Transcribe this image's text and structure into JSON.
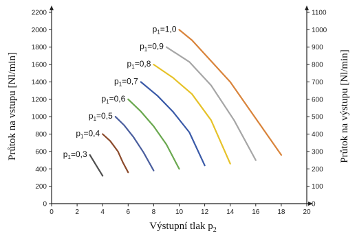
{
  "chart_data": {
    "type": "line",
    "xlabel": "Výstupní tlak p",
    "xlabel_subscript": "2",
    "ylabel_left": "Průtok na vstupu [Nl/min]",
    "ylabel_right": "Průtok na výstupu [Nl/min]",
    "xlim": [
      0,
      20
    ],
    "ylim_left": [
      0,
      2200
    ],
    "ylim_right": [
      0,
      1100
    ],
    "x_ticks": [
      0,
      2,
      4,
      6,
      8,
      10,
      12,
      14,
      16,
      18,
      20
    ],
    "y_left_ticks": [
      0,
      200,
      400,
      600,
      800,
      1000,
      1200,
      1400,
      1600,
      1800,
      2000,
      2200
    ],
    "y_right_ticks": [
      0,
      100,
      200,
      300,
      400,
      500,
      600,
      700,
      800,
      900,
      1000,
      1100
    ],
    "grid": false,
    "series": [
      {
        "name": "p1=0,3",
        "label_prefix": "p",
        "label_sub": "1",
        "label_suffix": "=0,3",
        "color": "#505050",
        "x": [
          3.0,
          3.5,
          4.0
        ],
        "y": [
          560,
          440,
          320
        ]
      },
      {
        "name": "p1=0,4",
        "label_prefix": "p",
        "label_sub": "1",
        "label_suffix": "=0,4",
        "color": "#8b4a2b",
        "x": [
          4.0,
          4.6,
          5.2,
          5.6,
          6.0
        ],
        "y": [
          800,
          720,
          600,
          470,
          360
        ]
      },
      {
        "name": "p1=0,5",
        "label_prefix": "p",
        "label_sub": "1",
        "label_suffix": "=0,5",
        "color": "#4a5e9e",
        "x": [
          5.0,
          5.7,
          6.4,
          7.2,
          8.0
        ],
        "y": [
          1000,
          900,
          770,
          590,
          380
        ]
      },
      {
        "name": "p1=0,6",
        "label_prefix": "p",
        "label_sub": "1",
        "label_suffix": "=0,6",
        "color": "#6aa84f",
        "x": [
          6.0,
          7.0,
          8.0,
          9.0,
          10.0
        ],
        "y": [
          1200,
          1060,
          890,
          680,
          400
        ]
      },
      {
        "name": "p1=0,7",
        "label_prefix": "p",
        "label_sub": "1",
        "label_suffix": "=0,7",
        "color": "#3a5aa8",
        "x": [
          7.0,
          8.3,
          9.5,
          10.8,
          12.0
        ],
        "y": [
          1400,
          1240,
          1060,
          820,
          440
        ]
      },
      {
        "name": "p1=0,8",
        "label_prefix": "p",
        "label_sub": "1",
        "label_suffix": "=0,8",
        "color": "#e6c229",
        "x": [
          8.0,
          9.5,
          11.0,
          12.5,
          14.0
        ],
        "y": [
          1600,
          1450,
          1260,
          960,
          460
        ]
      },
      {
        "name": "p1=0,9",
        "label_prefix": "p",
        "label_sub": "1",
        "label_suffix": "=0,9",
        "color": "#a6a6a6",
        "x": [
          9.0,
          10.8,
          12.5,
          14.3,
          16.0
        ],
        "y": [
          1800,
          1630,
          1360,
          960,
          500
        ]
      },
      {
        "name": "p1=1,0",
        "label_prefix": "p",
        "label_sub": "1",
        "label_suffix": "=1,0",
        "color": "#d9843b",
        "x": [
          10.0,
          11.0,
          12.0,
          14.0,
          16.0,
          18.0
        ],
        "y": [
          2000,
          1880,
          1720,
          1400,
          980,
          560
        ]
      }
    ]
  }
}
